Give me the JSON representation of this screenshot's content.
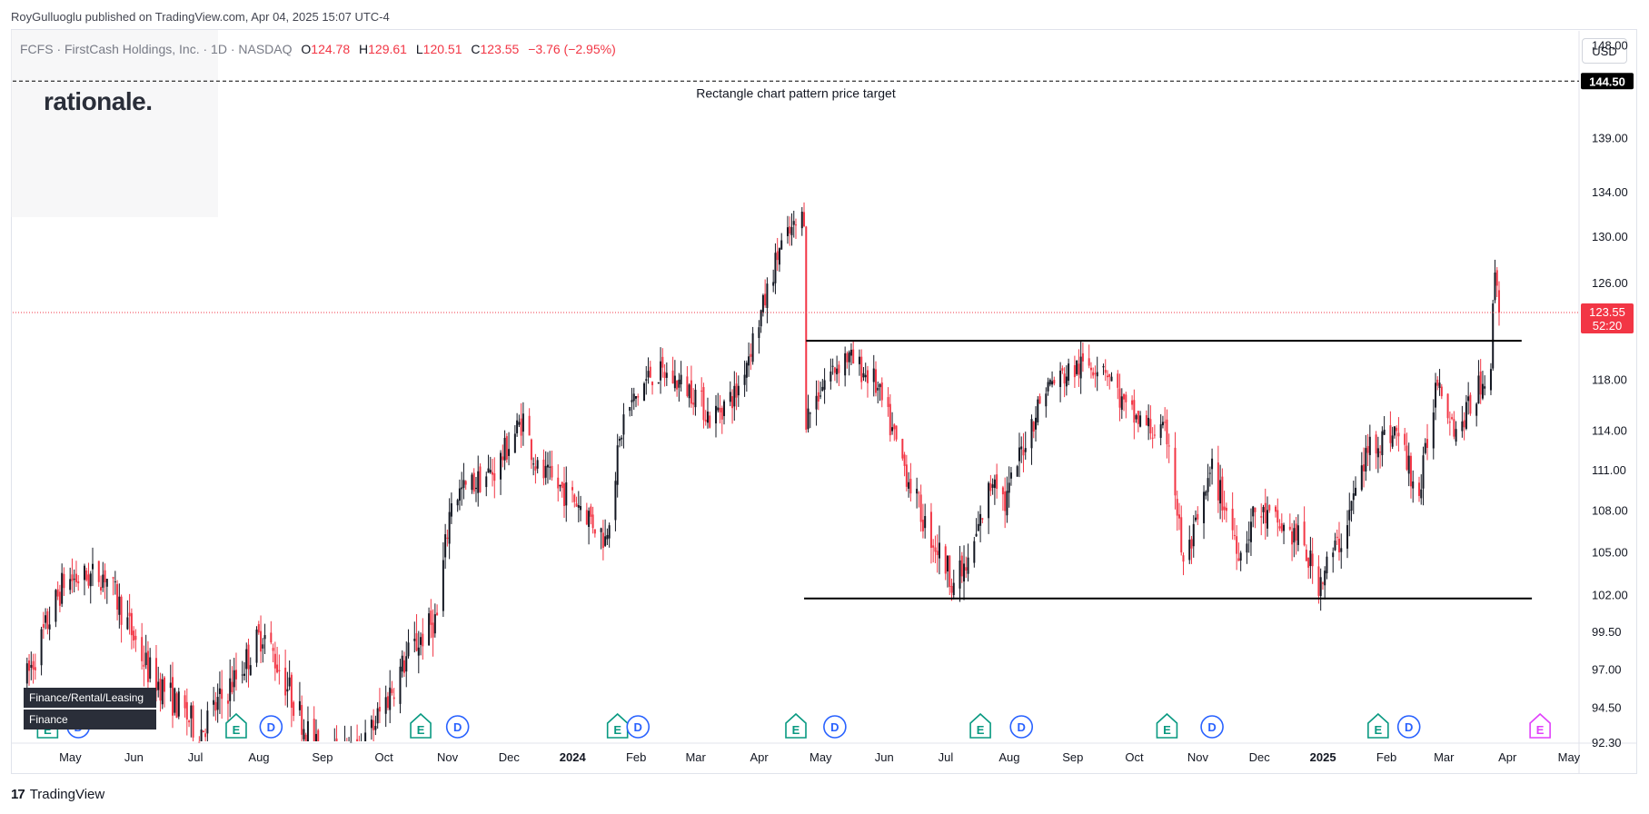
{
  "header": {
    "published_by": "RoyGulluoglu published on TradingView.com, Apr 04, 2025 15:07 UTC-4"
  },
  "legend": {
    "symbol": "FCFS · FirstCash Holdings, Inc. · 1D · NASDAQ",
    "o_label": "O",
    "o": "124.78",
    "h_label": "H",
    "h": "129.61",
    "l_label": "L",
    "l": "120.51",
    "c_label": "C",
    "c": "123.55",
    "change": "−3.76 (−2.95%)"
  },
  "watermark": {
    "logo_text": "rationale."
  },
  "currency_button": "USD",
  "sector_tags": [
    "Finance/Rental/Leasing",
    "Finance"
  ],
  "footer": {
    "brand": "TradingView",
    "brand_mark": "17"
  },
  "colors": {
    "up": "#131722",
    "down": "#f23645",
    "earnings": "#089981",
    "dividend": "#2962ff",
    "future_earnings": "#e040fb"
  },
  "chart_data": {
    "type": "candlestick",
    "y_axis": {
      "position": "right",
      "ticks": [
        "148.00",
        "144.50",
        "139.00",
        "134.00",
        "130.00",
        "126.00",
        "123.55",
        "118.00",
        "114.00",
        "111.00",
        "108.00",
        "105.00",
        "102.00",
        "99.50",
        "97.00",
        "94.50",
        "92.30"
      ],
      "scale": "log",
      "range": [
        92.3,
        149.5
      ]
    },
    "x_axis": {
      "ticks": [
        "May",
        "Jun",
        "Jul",
        "Aug",
        "Sep",
        "Oct",
        "Nov",
        "Dec",
        "2024",
        "Feb",
        "Mar",
        "Apr",
        "May",
        "Jun",
        "Jul",
        "Aug",
        "Sep",
        "Oct",
        "Nov",
        "Dec",
        "2025",
        "Feb",
        "Mar",
        "Apr",
        "May"
      ],
      "bold_ticks": [
        "2024",
        "2025"
      ]
    },
    "price_target": {
      "value": 144.5,
      "label": "144.50",
      "annotation": "Rectangle chart pattern price target"
    },
    "last_price": {
      "value": 123.55,
      "label": "123.55",
      "countdown": "52:20"
    },
    "rectangle": {
      "top": 121.2,
      "bottom": 101.8
    },
    "trend_anchors": [
      [
        "2023-04-17",
        96.5
      ],
      [
        "2023-05-05",
        103.0
      ],
      [
        "2023-05-25",
        103.5
      ],
      [
        "2023-06-15",
        97.0
      ],
      [
        "2023-07-10",
        93.0
      ],
      [
        "2023-07-28",
        96.5
      ],
      [
        "2023-08-10",
        99.5
      ],
      [
        "2023-08-25",
        95.0
      ],
      [
        "2023-09-08",
        91.0
      ],
      [
        "2023-09-28",
        92.0
      ],
      [
        "2023-10-20",
        98.0
      ],
      [
        "2023-11-03",
        100.5
      ],
      [
        "2023-11-10",
        109.0
      ],
      [
        "2023-12-01",
        111.0
      ],
      [
        "2023-12-15",
        115.0
      ],
      [
        "2023-12-22",
        111.0
      ],
      [
        "2024-01-12",
        108.5
      ],
      [
        "2024-01-24",
        106.0
      ],
      [
        "2024-02-02",
        115.0
      ],
      [
        "2024-02-15",
        118.5
      ],
      [
        "2024-02-22",
        118.5
      ],
      [
        "2024-03-08",
        117.0
      ],
      [
        "2024-03-15",
        115.0
      ],
      [
        "2024-03-28",
        117.0
      ],
      [
        "2024-04-10",
        124.0
      ],
      [
        "2024-04-18",
        129.0
      ],
      [
        "2024-04-30",
        132.0
      ],
      [
        "2024-05-01",
        115.0
      ],
      [
        "2024-05-10",
        118.0
      ],
      [
        "2024-05-20",
        120.0
      ],
      [
        "2024-06-03",
        118.0
      ],
      [
        "2024-06-14",
        113.0
      ],
      [
        "2024-06-28",
        107.0
      ],
      [
        "2024-07-12",
        103.0
      ],
      [
        "2024-07-19",
        104.0
      ],
      [
        "2024-08-01",
        111.0
      ],
      [
        "2024-08-06",
        108.5
      ],
      [
        "2024-08-15",
        113.0
      ],
      [
        "2024-08-26",
        117.5
      ],
      [
        "2024-09-10",
        119.0
      ],
      [
        "2024-09-23",
        119.5
      ],
      [
        "2024-10-04",
        115.5
      ],
      [
        "2024-10-18",
        114.0
      ],
      [
        "2024-10-25",
        113.5
      ],
      [
        "2024-11-01",
        104.0
      ],
      [
        "2024-11-08",
        107.0
      ],
      [
        "2024-11-15",
        111.0
      ],
      [
        "2024-11-29",
        105.0
      ],
      [
        "2024-12-06",
        108.0
      ],
      [
        "2024-12-17",
        107.0
      ],
      [
        "2024-12-27",
        106.0
      ],
      [
        "2025-01-06",
        103.0
      ],
      [
        "2025-01-17",
        106.0
      ],
      [
        "2025-01-31",
        113.0
      ],
      [
        "2025-02-13",
        114.0
      ],
      [
        "2025-02-24",
        109.0
      ],
      [
        "2025-03-05",
        118.5
      ],
      [
        "2025-03-14",
        114.0
      ],
      [
        "2025-03-21",
        116.0
      ],
      [
        "2025-03-31",
        119.5
      ],
      [
        "2025-04-02",
        127.5
      ],
      [
        "2025-04-04",
        123.55
      ]
    ],
    "events": [
      {
        "type": "E",
        "date": "2023-04-27"
      },
      {
        "type": "D",
        "date": "2023-05-12"
      },
      {
        "type": "E",
        "date": "2023-07-28"
      },
      {
        "type": "D",
        "date": "2023-08-14"
      },
      {
        "type": "E",
        "date": "2023-10-26"
      },
      {
        "type": "D",
        "date": "2023-11-13"
      },
      {
        "type": "E",
        "date": "2024-01-30"
      },
      {
        "type": "D",
        "date": "2024-02-09"
      },
      {
        "type": "E",
        "date": "2024-04-26"
      },
      {
        "type": "D",
        "date": "2024-05-15"
      },
      {
        "type": "E",
        "date": "2024-07-25"
      },
      {
        "type": "D",
        "date": "2024-08-14"
      },
      {
        "type": "E",
        "date": "2024-10-24"
      },
      {
        "type": "D",
        "date": "2024-11-15"
      },
      {
        "type": "E",
        "date": "2025-02-04"
      },
      {
        "type": "D",
        "date": "2025-02-19"
      },
      {
        "type": "E",
        "date": "2025-04-24",
        "future": true
      }
    ]
  }
}
